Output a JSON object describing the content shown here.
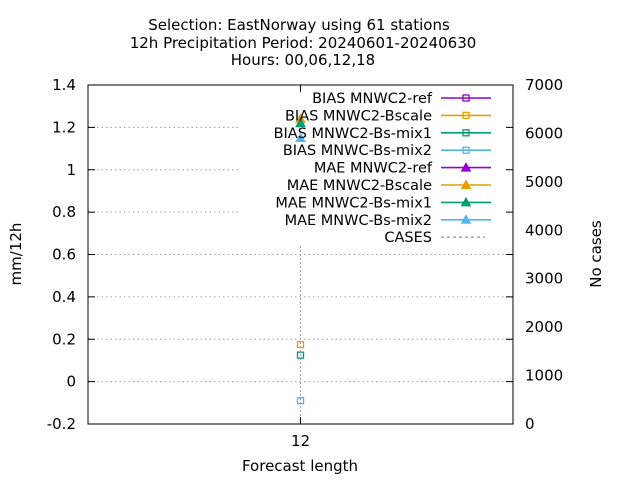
{
  "title_lines": [
    "Selection: EastNorway using    61 stations",
    "12h Precipitation    Period: 20240601-20240630",
    "Hours: 00,06,12,18"
  ],
  "chart_data": {
    "type": "scatter",
    "xlabel": "Forecast length",
    "ylabel": "mm/12h",
    "y2label": "No cases",
    "x_ticks": [
      12
    ],
    "xlim": [
      2,
      22
    ],
    "ylim": [
      -0.2,
      1.4
    ],
    "y_ticks": [
      -0.2,
      0,
      0.2,
      0.4,
      0.6,
      0.8,
      1,
      1.2,
      1.4
    ],
    "y_tick_labels": [
      "-0.2",
      "0",
      "0.2",
      "0.4",
      "0.6",
      "0.8",
      "1",
      "1.2",
      "1.4"
    ],
    "y2lim": [
      0,
      7000
    ],
    "y2_ticks": [
      0,
      1000,
      2000,
      3000,
      4000,
      5000,
      6000,
      7000
    ],
    "grid": true,
    "legend_position": "top-right",
    "series": [
      {
        "name": "BIAS MNWC2-ref",
        "color": "#9400d3",
        "marker": "square",
        "axis": "y",
        "x": [
          12
        ],
        "y": [
          null
        ]
      },
      {
        "name": "BIAS MNWC2-Bscale",
        "color": "#e69f00",
        "marker": "square",
        "axis": "y",
        "x": [
          12
        ],
        "y": [
          0.175
        ]
      },
      {
        "name": "BIAS MNWC2-Bs-mix1",
        "color": "#009e73",
        "marker": "square",
        "axis": "y",
        "x": [
          12
        ],
        "y": [
          0.125
        ]
      },
      {
        "name": "BIAS MNWC-Bs-mix2",
        "color": "#56b4e9",
        "marker": "square",
        "axis": "y",
        "x": [
          12
        ],
        "y": [
          -0.09
        ]
      },
      {
        "name": "MAE MNWC2-ref",
        "color": "#9400d3",
        "marker": "triangle",
        "axis": "y",
        "x": [
          12
        ],
        "y": [
          null
        ]
      },
      {
        "name": "MAE MNWC2-Bscale",
        "color": "#e69f00",
        "marker": "triangle",
        "axis": "y",
        "x": [
          12
        ],
        "y": [
          1.24
        ]
      },
      {
        "name": "MAE MNWC2-Bs-mix1",
        "color": "#009e73",
        "marker": "triangle",
        "axis": "y",
        "x": [
          12
        ],
        "y": [
          1.22
        ]
      },
      {
        "name": "MAE MNWC-Bs-mix2",
        "color": "#56b4e9",
        "marker": "triangle",
        "axis": "y",
        "x": [
          12
        ],
        "y": [
          1.15
        ]
      },
      {
        "name": "CASES",
        "color": "#a0a0a0",
        "marker": "impulse",
        "axis": "y2",
        "x": [
          12
        ],
        "y": [
          3720
        ]
      }
    ]
  }
}
